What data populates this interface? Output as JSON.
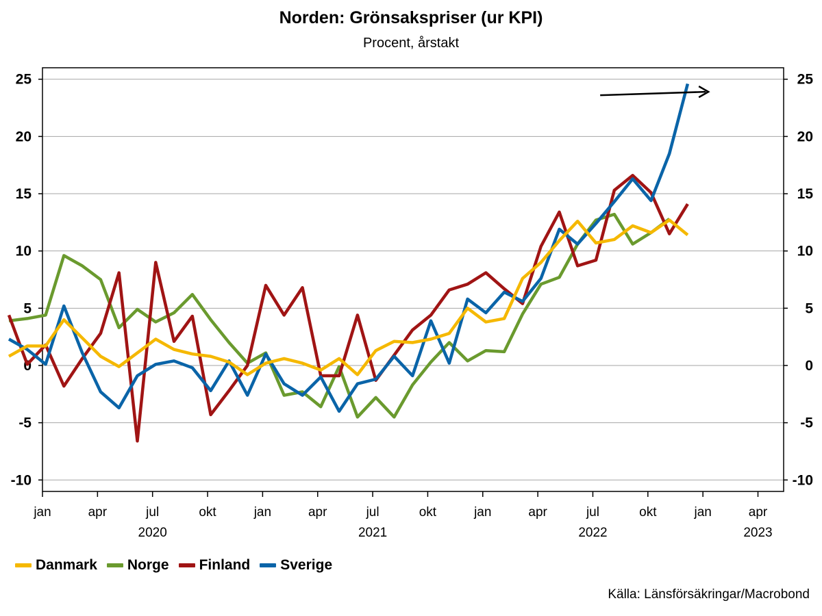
{
  "chart_data": {
    "type": "line",
    "title": "Norden: Grönsakspriser (ur KPI)",
    "subtitle": "Procent, årstakt",
    "source": "Källa: Länsförsäkringar/Macrobond",
    "ylim": [
      -11,
      26
    ],
    "yticks": [
      25,
      20,
      15,
      10,
      5,
      0,
      -5,
      -10
    ],
    "ytick_labels": [
      "25",
      "20",
      "15",
      "10",
      "5",
      "0",
      "-5",
      "-10"
    ],
    "xlim": [
      0,
      40.4
    ],
    "month_ticks": [
      {
        "x": 0,
        "label": "jan"
      },
      {
        "x": 3,
        "label": "apr"
      },
      {
        "x": 6,
        "label": "jul"
      },
      {
        "x": 9,
        "label": "okt"
      },
      {
        "x": 12,
        "label": "jan"
      },
      {
        "x": 15,
        "label": "apr"
      },
      {
        "x": 18,
        "label": "jul"
      },
      {
        "x": 21,
        "label": "okt"
      },
      {
        "x": 24,
        "label": "jan"
      },
      {
        "x": 27,
        "label": "apr"
      },
      {
        "x": 30,
        "label": "jul"
      },
      {
        "x": 33,
        "label": "okt"
      },
      {
        "x": 36,
        "label": "jan"
      },
      {
        "x": 39,
        "label": "apr"
      }
    ],
    "year_labels": [
      {
        "x": 6,
        "label": "2020"
      },
      {
        "x": 18,
        "label": "2021"
      },
      {
        "x": 30,
        "label": "2022"
      },
      {
        "x": 39,
        "label": "2023"
      }
    ],
    "grid": true,
    "legend_position": "bottom-left",
    "annotation": {
      "type": "arrow",
      "x_from": 30.4,
      "x_to": 36.3,
      "y_from": 23.6,
      "y_to": 23.9
    },
    "series": [
      {
        "name": "Danmark",
        "color": "#F5B800",
        "values": [
          0.8,
          1.7,
          1.7,
          4.0,
          2.4,
          0.8,
          -0.1,
          1.1,
          2.3,
          1.4,
          1.0,
          0.8,
          0.3,
          -0.8,
          0.2,
          0.6,
          0.2,
          -0.4,
          0.6,
          -0.8,
          1.3,
          2.1,
          2.0,
          2.3,
          2.8,
          5.0,
          3.8,
          4.1,
          7.6,
          9.0,
          10.9,
          12.6,
          10.7,
          11.0,
          12.2,
          11.6,
          12.7,
          11.4
        ]
      },
      {
        "name": "Norge",
        "color": "#6A9A2E",
        "values": [
          3.9,
          4.1,
          4.4,
          9.6,
          8.7,
          7.5,
          3.3,
          4.9,
          3.8,
          4.6,
          6.2,
          4.0,
          2.0,
          0.2,
          1.1,
          -2.6,
          -2.3,
          -3.6,
          -0.1,
          -4.5,
          -2.8,
          -4.5,
          -1.7,
          0.3,
          2.0,
          0.4,
          1.3,
          1.2,
          4.5,
          7.1,
          7.7,
          10.6,
          12.7,
          13.2,
          10.6,
          11.6,
          12.8
        ]
      },
      {
        "name": "Finland",
        "color": "#A01414",
        "values": [
          4.4,
          0.1,
          1.8,
          -1.8,
          0.6,
          2.8,
          8.1,
          -6.6,
          9.0,
          2.1,
          4.3,
          -4.3,
          -2.2,
          0.0,
          7.0,
          4.4,
          6.8,
          -0.9,
          -0.9,
          4.4,
          -1.3,
          0.9,
          3.1,
          4.4,
          6.6,
          7.1,
          8.1,
          6.7,
          5.4,
          10.4,
          13.4,
          8.7,
          9.2,
          15.3,
          16.6,
          15.1,
          11.5,
          14.1
        ]
      },
      {
        "name": "Sverige",
        "color": "#0A64A8",
        "values": [
          2.3,
          1.4,
          0.1,
          5.2,
          1.1,
          -2.3,
          -3.7,
          -0.9,
          0.1,
          0.4,
          -0.2,
          -2.2,
          0.4,
          -2.6,
          1.0,
          -1.6,
          -2.6,
          -1.0,
          -4.0,
          -1.6,
          -1.2,
          0.8,
          -0.9,
          3.9,
          0.2,
          5.8,
          4.6,
          6.4,
          5.6,
          7.6,
          11.9,
          10.6,
          12.4,
          14.3,
          16.3,
          14.4,
          18.5,
          24.6
        ]
      }
    ]
  }
}
